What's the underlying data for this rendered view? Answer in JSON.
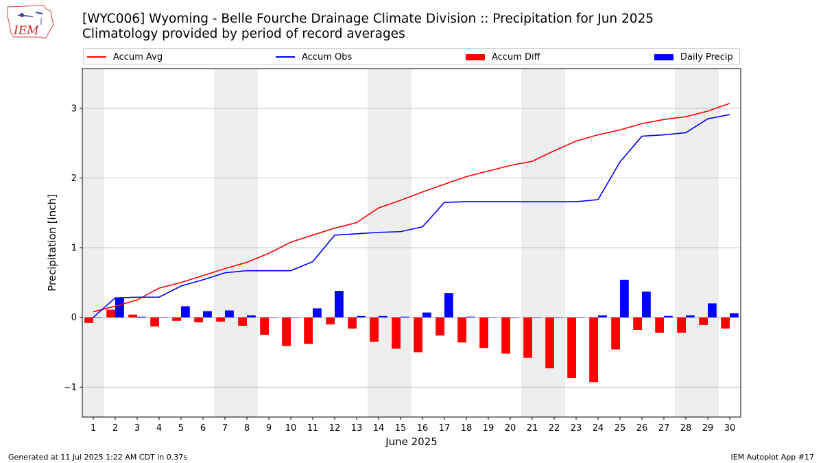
{
  "header": {
    "title_line1": "[WYC006] Wyoming - Belle Fourche Drainage Climate Division :: Precipitation for Jun 2025",
    "title_line2": "Climatology provided by period of record averages"
  },
  "logo": {
    "text": "IEM"
  },
  "footer": {
    "left": "Generated at 11 Jul 2025 1:22 AM CDT in 0.37s",
    "right": "IEM Autoplot App #17"
  },
  "colors": {
    "accum_avg": "#ff0000",
    "accum_obs": "#0000ff",
    "accum_diff": "#ff0000",
    "daily_precip": "#0000ff",
    "weekend_shade": "#eeeeee",
    "grid": "#b0b0b0"
  },
  "chart_data": {
    "type": "bar",
    "xlabel": "June 2025",
    "ylabel": "Precipitation [inch]",
    "ylim": [
      -1.43,
      3.57
    ],
    "xlim": [
      0.5,
      30.5
    ],
    "yticks": [
      -1,
      0,
      1,
      2,
      3
    ],
    "ytick_labels": [
      "−1",
      "0",
      "1",
      "2",
      "3"
    ],
    "x": [
      1,
      2,
      3,
      4,
      5,
      6,
      7,
      8,
      9,
      10,
      11,
      12,
      13,
      14,
      15,
      16,
      17,
      18,
      19,
      20,
      21,
      22,
      23,
      24,
      25,
      26,
      27,
      28,
      29,
      30
    ],
    "xtick_labels": [
      "1",
      "2",
      "3",
      "4",
      "5",
      "6",
      "7",
      "8",
      "9",
      "10",
      "11",
      "12",
      "13",
      "14",
      "15",
      "16",
      "17",
      "18",
      "19",
      "20",
      "21",
      "22",
      "23",
      "24",
      "25",
      "26",
      "27",
      "28",
      "29",
      "30"
    ],
    "grid": "horizontal",
    "legend_position": "top",
    "weekend_spans": [
      [
        1,
        1
      ],
      [
        7,
        8
      ],
      [
        14,
        15
      ],
      [
        21,
        22
      ],
      [
        28,
        29
      ]
    ],
    "series": [
      {
        "name": "Accum Avg",
        "kind": "line",
        "values": [
          0.08,
          0.16,
          0.25,
          0.42,
          0.5,
          0.6,
          0.7,
          0.79,
          0.92,
          1.08,
          1.18,
          1.28,
          1.36,
          1.57,
          1.68,
          1.8,
          1.91,
          2.02,
          2.1,
          2.18,
          2.24,
          2.39,
          2.53,
          2.62,
          2.69,
          2.78,
          2.84,
          2.88,
          2.96,
          3.07
        ]
      },
      {
        "name": "Accum Obs",
        "kind": "line",
        "values": [
          0.0,
          0.28,
          0.29,
          0.29,
          0.45,
          0.54,
          0.64,
          0.67,
          0.67,
          0.67,
          0.8,
          1.18,
          1.2,
          1.22,
          1.23,
          1.3,
          1.65,
          1.66,
          1.66,
          1.66,
          1.66,
          1.66,
          1.66,
          1.69,
          2.23,
          2.6,
          2.62,
          2.65,
          2.85,
          2.91
        ]
      },
      {
        "name": "Accum Diff",
        "kind": "bar",
        "values": [
          -0.08,
          0.11,
          0.04,
          -0.13,
          -0.05,
          -0.07,
          -0.06,
          -0.12,
          -0.25,
          -0.41,
          -0.38,
          -0.1,
          -0.16,
          -0.35,
          -0.45,
          -0.5,
          -0.26,
          -0.36,
          -0.44,
          -0.52,
          -0.58,
          -0.73,
          -0.87,
          -0.93,
          -0.46,
          -0.18,
          -0.22,
          -0.22,
          -0.11,
          -0.16
        ]
      },
      {
        "name": "Daily Precip",
        "kind": "bar",
        "values": [
          0.0,
          0.28,
          0.01,
          0.0,
          0.16,
          0.09,
          0.1,
          0.03,
          0.0,
          0.0,
          0.13,
          0.38,
          0.02,
          0.02,
          0.01,
          0.07,
          0.35,
          0.01,
          0.0,
          0.0,
          0.0,
          0.0,
          0.0,
          0.03,
          0.54,
          0.37,
          0.02,
          0.03,
          0.2,
          0.06
        ]
      }
    ]
  }
}
